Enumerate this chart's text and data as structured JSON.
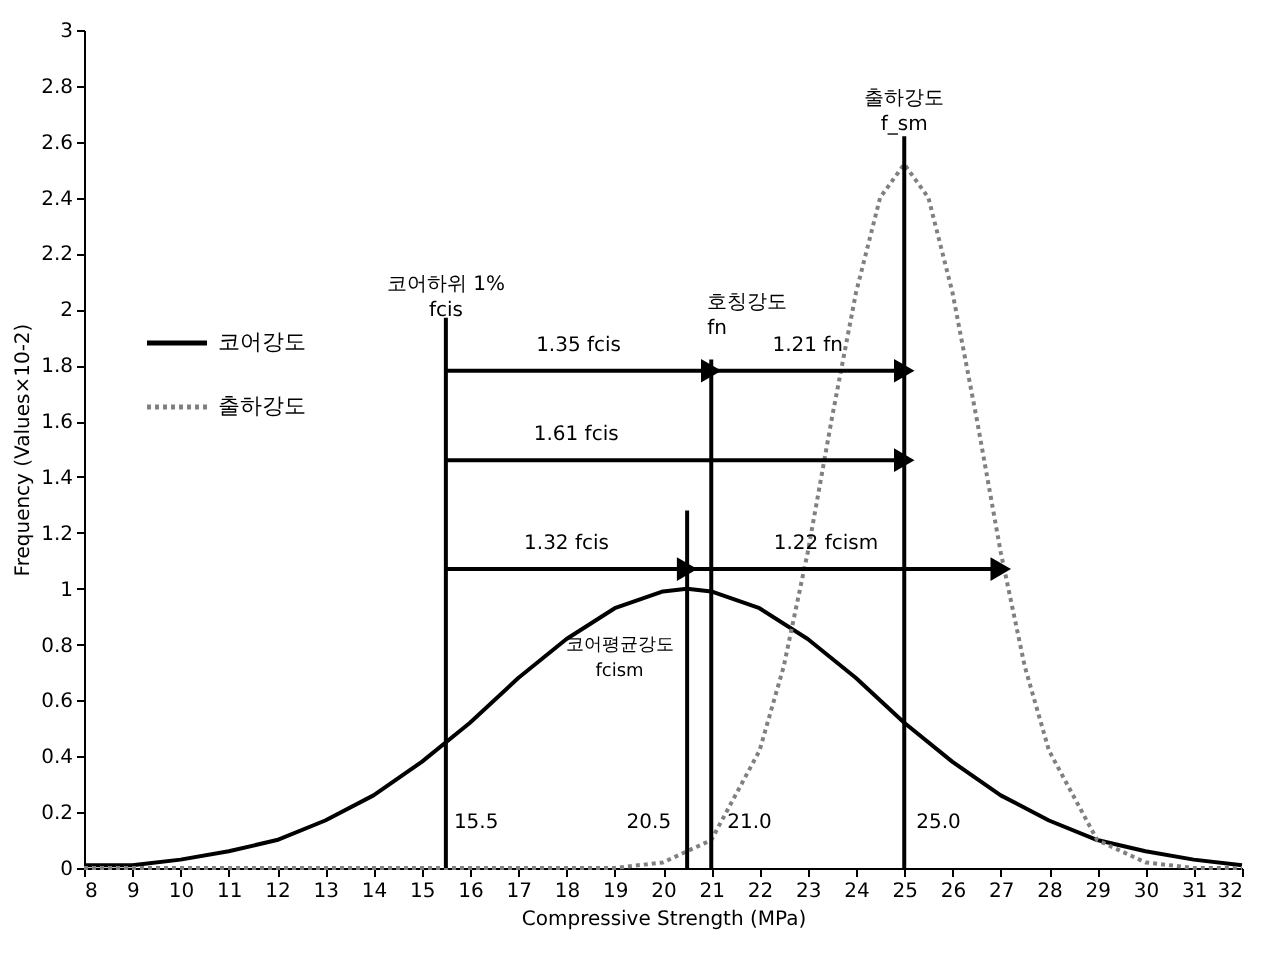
{
  "chart_data": {
    "type": "line",
    "xlabel": "Compressive Strength (MPa)",
    "ylabel": "Frequency (Values×10-2)",
    "xlim": [
      8,
      32
    ],
    "ylim": [
      0,
      3
    ],
    "xticks": [
      8,
      9,
      10,
      11,
      12,
      13,
      14,
      15,
      16,
      17,
      18,
      19,
      20,
      21,
      22,
      23,
      24,
      25,
      26,
      27,
      28,
      29,
      30,
      31,
      32
    ],
    "yticks": [
      0,
      0.2,
      0.4,
      0.6,
      0.8,
      1,
      1.2,
      1.4,
      1.6,
      1.8,
      2,
      2.2,
      2.4,
      2.6,
      2.8,
      3
    ],
    "grid": false,
    "legend": "top left",
    "series": [
      {
        "name": "코어강도",
        "color": "#000000",
        "line_style": "solid",
        "x": [
          8,
          9,
          10,
          11,
          12,
          13,
          14,
          15,
          16,
          17,
          18,
          19,
          20,
          20.5,
          21,
          22,
          23,
          24,
          25,
          26,
          27,
          28,
          29,
          30,
          31,
          32
        ],
        "values": [
          0.01,
          0.01,
          0.03,
          0.06,
          0.1,
          0.17,
          0.26,
          0.38,
          0.52,
          0.68,
          0.82,
          0.93,
          0.99,
          1,
          0.99,
          0.93,
          0.82,
          0.68,
          0.52,
          0.38,
          0.26,
          0.17,
          0.1,
          0.06,
          0.03,
          0.01
        ]
      },
      {
        "name": "출하강도",
        "color": "#808080",
        "line_style": "dotted",
        "x": [
          8,
          18,
          19,
          20,
          21,
          22,
          22.5,
          23,
          23.5,
          24,
          24.5,
          25,
          25.5,
          26,
          26.5,
          27,
          27.5,
          28,
          29,
          30,
          31,
          32
        ],
        "values": [
          0,
          0,
          0,
          0.02,
          0.1,
          0.42,
          0.72,
          1.13,
          1.61,
          2.06,
          2.4,
          2.52,
          2.4,
          2.06,
          1.61,
          1.13,
          0.72,
          0.42,
          0.1,
          0.02,
          0,
          0
        ]
      },
      {
        "color": "#000000",
        "line_style": "solid",
        "x": [
          15.5,
          15.5
        ],
        "values": [
          0,
          1.97
        ]
      },
      {
        "color": "#000000",
        "line_style": "solid",
        "x": [
          20.5,
          20.5
        ],
        "values": [
          0,
          1.28
        ]
      },
      {
        "color": "#000000",
        "line_style": "solid",
        "x": [
          21,
          21
        ],
        "values": [
          0,
          1.82
        ]
      },
      {
        "color": "#000000",
        "line_style": "solid",
        "x": [
          25,
          25
        ],
        "values": [
          0,
          2.62
        ]
      },
      {
        "color": "#000000",
        "line_style": "solid",
        "marker": "triangle",
        "x": [
          15.5,
          21
        ],
        "values": [
          1.78,
          1.78
        ]
      },
      {
        "color": "#000000",
        "line_style": "solid",
        "marker": "triangle",
        "x": [
          21,
          25
        ],
        "values": [
          1.78,
          1.78
        ]
      },
      {
        "color": "#000000",
        "line_style": "solid",
        "marker": "triangle",
        "x": [
          15.5,
          25
        ],
        "values": [
          1.46,
          1.46
        ]
      },
      {
        "color": "#000000",
        "line_style": "solid",
        "marker": "triangle",
        "x": [
          15.5,
          20.5
        ],
        "values": [
          1.07,
          1.07
        ]
      },
      {
        "color": "#000000",
        "line_style": "solid",
        "marker": "triangle",
        "x": [
          20.5,
          27
        ],
        "values": [
          1.07,
          1.07
        ]
      }
    ],
    "annotations": [
      {
        "text": "코어하위 1%\nfcis",
        "x": 15.5,
        "y": 1.97
      },
      {
        "text": "호칭강도\nfn",
        "x": 21,
        "y": 1.82
      },
      {
        "text": "출하강도\nf_sm",
        "x": 25,
        "y": 2.62
      },
      "코어평균강도\nfcism",
      {
        "text": "1.35 fcis",
        "x": 18.25,
        "y": 1.78
      },
      {
        "text": "1.21 fn",
        "x": 23,
        "y": 1.78
      },
      {
        "text": "1.61 fcis",
        "x": 18.2,
        "y": 1.46
      },
      {
        "text": "1.32 fcis",
        "x": 18,
        "y": 1.07
      },
      {
        "text": "1.22 fcism",
        "x": 23.75,
        "y": 1.07
      },
      {
        "text": "15.5",
        "x": 15.5,
        "y": 0
      },
      {
        "text": "20.5",
        "x": 20.5,
        "y": 0
      },
      {
        "text": "21.0",
        "x": 21,
        "y": 0
      },
      {
        "text": "25.0",
        "x": 25,
        "y": 0
      }
    ]
  }
}
